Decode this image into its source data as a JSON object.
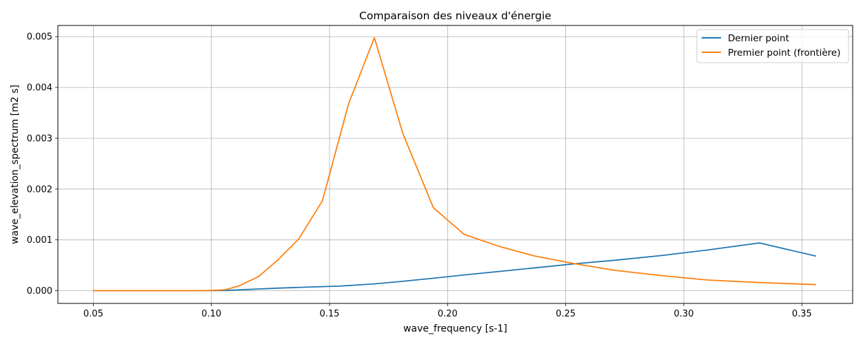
{
  "chart_data": {
    "type": "line",
    "title": "Comparaison des niveaux d'énergie",
    "xlabel": "wave_frequency [s-1]",
    "ylabel": "wave_elevation_spectrum [m2 s]",
    "xlim": [
      0.035,
      0.3715
    ],
    "ylim": [
      -0.00025,
      0.00522
    ],
    "xticks": [
      0.05,
      0.1,
      0.15,
      0.2,
      0.25,
      0.3,
      0.35
    ],
    "xtick_labels": [
      "0.05",
      "0.10",
      "0.15",
      "0.20",
      "0.25",
      "0.30",
      "0.35"
    ],
    "yticks": [
      0.0,
      0.001,
      0.002,
      0.003,
      0.004,
      0.005
    ],
    "ytick_labels": [
      "0.000",
      "0.001",
      "0.002",
      "0.003",
      "0.004",
      "0.005"
    ],
    "grid": true,
    "legend_position": "top-right",
    "series": [
      {
        "name": "Dernier point",
        "color": "#1f77b4",
        "x": [
          0.05,
          0.055,
          0.06,
          0.066,
          0.073,
          0.08,
          0.088,
          0.096,
          0.106,
          0.116,
          0.128,
          0.14,
          0.154,
          0.169,
          0.181,
          0.194,
          0.207,
          0.222,
          0.237,
          0.254,
          0.271,
          0.29,
          0.31,
          0.332,
          0.356
        ],
        "y": [
          0.0,
          0.0,
          0.0,
          0.0,
          0.0,
          0.0,
          0.0,
          0.0,
          5e-06,
          2.5e-05,
          5e-05,
          7e-05,
          9e-05,
          0.000135,
          0.000185,
          0.000245,
          0.00031,
          0.00038,
          0.00045,
          0.00053,
          0.0006,
          0.00069,
          0.0008,
          0.00094,
          0.00068
        ]
      },
      {
        "name": "Premier point (frontière)",
        "color": "#ff7f0e",
        "x": [
          0.05,
          0.055,
          0.06,
          0.066,
          0.073,
          0.08,
          0.088,
          0.096,
          0.1,
          0.106,
          0.112,
          0.12,
          0.128,
          0.137,
          0.147,
          0.158,
          0.169,
          0.181,
          0.194,
          0.207,
          0.222,
          0.237,
          0.254,
          0.271,
          0.29,
          0.31,
          0.332,
          0.356
        ],
        "y": [
          0.0,
          0.0,
          0.0,
          0.0,
          0.0,
          0.0,
          0.0,
          0.0,
          5e-06,
          2e-05,
          0.0001,
          0.00028,
          0.0006,
          0.00102,
          0.00177,
          0.00367,
          0.00498,
          0.0031,
          0.00163,
          0.00111,
          0.00087,
          0.00068,
          0.00053,
          0.0004,
          0.0003,
          0.00021,
          0.00016,
          0.00012
        ]
      }
    ]
  }
}
